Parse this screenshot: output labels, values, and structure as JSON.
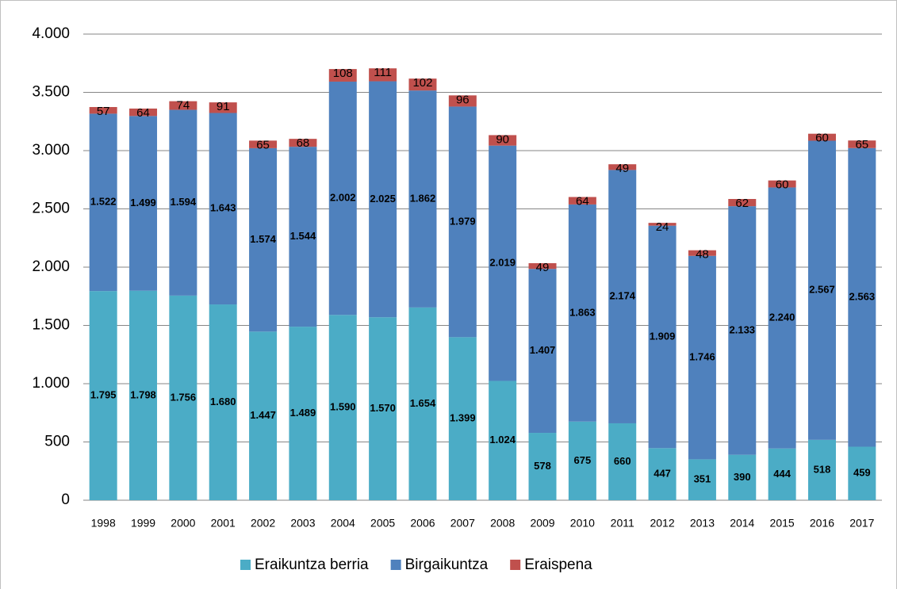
{
  "chart_data": {
    "type": "stacked_bar",
    "categories": [
      "1998",
      "1999",
      "2000",
      "2001",
      "2002",
      "2003",
      "2004",
      "2005",
      "2006",
      "2007",
      "2008",
      "2009",
      "2010",
      "2011",
      "2012",
      "2013",
      "2014",
      "2015",
      "2016",
      "2017"
    ],
    "series": [
      {
        "name": "Eraikuntza berria",
        "color": "#4bacc6",
        "values": [
          1795,
          1798,
          1756,
          1680,
          1447,
          1489,
          1590,
          1570,
          1654,
          1399,
          1024,
          578,
          675,
          660,
          447,
          351,
          390,
          444,
          518,
          459
        ],
        "value_labels": [
          "1.795",
          "1.798",
          "1.756",
          "1.680",
          "1.447",
          "1.489",
          "1.590",
          "1.570",
          "1.654",
          "1.399",
          "1.024",
          "578",
          "675",
          "660",
          "447",
          "351",
          "390",
          "444",
          "518",
          "459"
        ]
      },
      {
        "name": "Birgaikuntza",
        "color": "#4f81bd",
        "values": [
          1522,
          1499,
          1594,
          1643,
          1574,
          1544,
          2002,
          2025,
          1862,
          1979,
          2019,
          1407,
          1863,
          2174,
          1909,
          1746,
          2133,
          2240,
          2567,
          2563
        ],
        "value_labels": [
          "1.522",
          "1.499",
          "1.594",
          "1.643",
          "1.574",
          "1.544",
          "2.002",
          "2.025",
          "1.862",
          "1.979",
          "2.019",
          "1.407",
          "1.863",
          "2.174",
          "1.909",
          "1.746",
          "2.133",
          "2.240",
          "2.567",
          "2.563"
        ]
      },
      {
        "name": "Eraispena",
        "color": "#c0504d",
        "values": [
          57,
          64,
          74,
          91,
          65,
          68,
          108,
          111,
          102,
          96,
          90,
          49,
          64,
          49,
          24,
          48,
          62,
          60,
          60,
          65
        ]
      }
    ],
    "ylim": [
      0,
      4000
    ],
    "yticks": [
      0,
      500,
      {
        "value": 1000,
        "label": "1.000"
      },
      {
        "value": 1500,
        "label": "1.500"
      },
      {
        "value": 2000,
        "label": "2.000"
      },
      {
        "value": 2500,
        "label": "2.500"
      },
      {
        "value": 3000,
        "label": "3.000"
      },
      {
        "value": 3500,
        "label": "3.500"
      },
      {
        "value": 4000,
        "label": "4.000"
      }
    ],
    "grid": true,
    "legend": "bottom"
  }
}
